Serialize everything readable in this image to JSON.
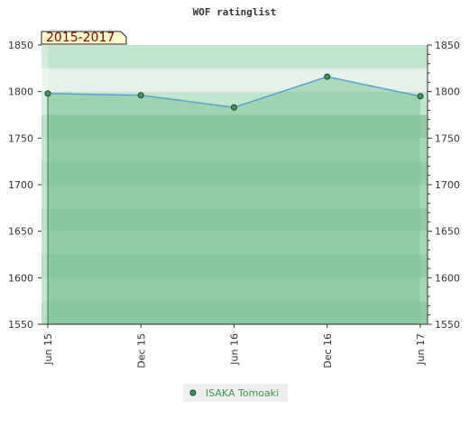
{
  "chart_data": {
    "type": "area",
    "title": "WOF ratinglist",
    "period_label": "2015-2017",
    "xlabel": "",
    "ylabel": "",
    "categories": [
      "Jun 15",
      "Dec 15",
      "Jun 16",
      "Dec 16",
      "Jun 17"
    ],
    "ylim": [
      1550,
      1850
    ],
    "yticks": [
      1550,
      1600,
      1650,
      1700,
      1750,
      1800,
      1850
    ],
    "grid": true,
    "legend_position": "bottom-center",
    "series": [
      {
        "name": "ISAKA Tomoaki",
        "values": [
          1798,
          1796,
          1783,
          1816,
          1795
        ]
      }
    ],
    "colors": {
      "line": "#5aa0d0",
      "fill": "#7fc497",
      "marker": "#3c9a5a",
      "band_dark": "#7fc497",
      "band_mid": "#94cfa7",
      "band_light": "#b5dfc3",
      "band_pale": "#dff0e5",
      "period_bg": "#ffffcc",
      "legend_bg": "#eeeeee"
    }
  }
}
